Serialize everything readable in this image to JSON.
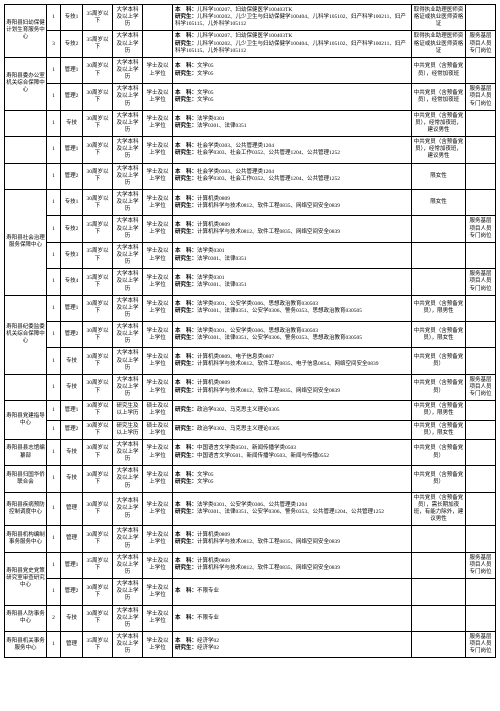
{
  "labels": {
    "benke": "本　科：",
    "yanjiu": "研究生："
  },
  "rows": [
    {
      "org": "寿阳县妇幼保健计划生育服务中心",
      "org_rowspan": 2,
      "count": "1",
      "pos": "专技1",
      "age": "35周岁以下",
      "edu": "大学本科及以上学历",
      "deg": "",
      "bk": "儿科学100207、妇幼保健医学100403TK",
      "yj": "儿科学100202、儿少卫生与妇幼保健学100404、儿科学105102、妇产科学100211、妇产科学105115、儿外科学105112",
      "remark": "取得执业助理医师资格证或执业医师资格证",
      "note": ""
    },
    {
      "count": "3",
      "pos": "专技2",
      "age": "35周岁以下",
      "edu": "大学本科及以上学历",
      "deg": "",
      "bk": "儿科学100207、妇幼保健医学100403TK",
      "yj": "儿科学100202、儿少卫生与妇幼保健学100404、儿科学105102、妇产科学100211、妇产科学105115、儿外科学105112",
      "remark": "取得执业助理医师资格证或执业医师资格证",
      "note": "服务基层项目人员专门岗位"
    },
    {
      "org": "寿阳县委办公室机关综合保障中心",
      "org_rowspan": 2,
      "count": "1",
      "pos": "管理1",
      "age": "30周岁以下",
      "edu": "大学本科及以上学历",
      "deg": "学士及以上学位",
      "bk": "文学05",
      "yj": "文学05",
      "remark": "中共党员（含预备党员），经常加夜班",
      "note": ""
    },
    {
      "count": "1",
      "pos": "管理2",
      "age": "30周岁以下",
      "edu": "大学本科及以上学历",
      "deg": "学士及以上学位",
      "bk": "文学05",
      "yj": "文学05",
      "remark": "中共党员（含预备党员），经常加夜班",
      "note": "服务基层项目人员专门岗位"
    },
    {
      "org": "",
      "org_rowspan": 1,
      "count": "1",
      "pos": "专技",
      "age": "30周岁以下",
      "edu": "大学本科及以上学历",
      "deg": "学士及以上学位",
      "bk": "法学类0301",
      "yj": "法学0301、法律0351",
      "remark": "中共党员（含预备党员），经常加夜班，建议男性",
      "note": ""
    },
    {
      "org": "",
      "org_rowspan": 1,
      "count": "1",
      "pos": "管理1",
      "age": "30周岁以下",
      "edu": "大学本科及以上学历",
      "deg": "学士及以上学位",
      "bk": "社会学类0303、公共管理类1204",
      "yj": "社会学0303、社会工作0352、公共管理1204、公共管理1252",
      "remark": "中共党员（含预备党员），经常加夜班，建议男性",
      "note": ""
    },
    {
      "org": "",
      "org_rowspan": 1,
      "count": "1",
      "pos": "管理2",
      "age": "30周岁以下",
      "edu": "大学本科及以上学历",
      "deg": "学士及以上学位",
      "bk": "社会学类0303、公共管理类1204",
      "yj": "社会学0303、社会工作0352、公共管理1204、公共管理1252",
      "remark": "限女性",
      "note": ""
    },
    {
      "org": "寿阳县社会治理服务保障中心",
      "org_rowspan": 4,
      "count": "1",
      "pos": "专技1",
      "age": "30周岁以下",
      "edu": "大学本科及以上学历",
      "deg": "学士及以上学位",
      "bk": "计算机类0809",
      "yj": "计算机科学与技术0812、软件工程0835、网络空间安全0839",
      "remark": "限女性",
      "note": ""
    },
    {
      "count": "1",
      "pos": "专技2",
      "age": "35周岁以下",
      "edu": "大学本科及以上学历",
      "deg": "学士及以上学位",
      "bk": "计算机类0809",
      "yj": "计算机科学与技术0812、软件工程0835、网络空间安全0839",
      "remark": "",
      "note": "服务基层项目人员专门岗位"
    },
    {
      "count": "1",
      "pos": "专技3",
      "age": "35周岁以下",
      "edu": "大学本科及以上学历",
      "deg": "学士及以上学位",
      "bk": "法学类0301",
      "yj": "法学0301、法律0351",
      "remark": "",
      "note": ""
    },
    {
      "count": "1",
      "pos": "专技4",
      "age": "35周岁以下",
      "edu": "大学本科及以上学历",
      "deg": "学士及以上学位",
      "bk": "法学类0301",
      "yj": "法学0301、法律0351",
      "remark": "",
      "note": "服务基层项目人员专门岗位"
    },
    {
      "org": "寿阳县纪委监委机关综合保障中心",
      "org_rowspan": 3,
      "count": "1",
      "pos": "管理1",
      "age": "30周岁以下",
      "edu": "大学本科及以上学历",
      "deg": "学士及以上学位",
      "bk": "法学类0301、公安学类0306、思想政治教育030503",
      "yj": "法学0301、法律0351、公安学0306、警务0353、思想政治教育030505",
      "remark": "中共党员（含预备党员），限男性",
      "note": ""
    },
    {
      "count": "1",
      "pos": "管理2",
      "age": "30周岁以下",
      "edu": "大学本科及以上学历",
      "deg": "学士及以上学位",
      "bk": "法学类0301、公安学类0306、思想政治教育030503",
      "yj": "法学0301、法律0351、公安学0306、警务0353、思想政治教育030505",
      "remark": "中共党员（含预备党员），限女性",
      "note": ""
    },
    {
      "count": "1",
      "pos": "专技",
      "age": "30周岁以下",
      "edu": "大学本科及以上学历",
      "deg": "学士及以上学位",
      "bk": "计算机类0809、电子信息类0807",
      "yj": "计算机科学与技术0812、软件工程0835、电子信息0854、网络空间安全0839",
      "remark": "中共党员（含预备党员）",
      "note": ""
    },
    {
      "org": "",
      "org_rowspan": 1,
      "count": "1",
      "pos": "专技",
      "age": "30周岁以下",
      "edu": "大学本科及以上学历",
      "deg": "学士及以上学位",
      "bk": "计算机类0809",
      "yj": "计算机科学与技术0812、软件工程0835、网络空间安全0839",
      "remark": "中共党员（含预备党员）",
      "note": "服务基层项目人员专门岗位"
    },
    {
      "org": "寿阳县党建指导中心",
      "org_rowspan": 2,
      "count": "1",
      "pos": "管理1",
      "age": "30周岁以下",
      "edu": "研究生及以上学历",
      "deg": "硕士及以上学位",
      "bk": "",
      "yj": "政治学0302、马克思主义理论0305",
      "remark": "中共党员（含预备党员），限男性",
      "note": ""
    },
    {
      "count": "1",
      "pos": "管理2",
      "age": "30周岁以下",
      "edu": "研究生及以上学历",
      "deg": "硕士及以上学位",
      "bk": "",
      "yj": "政治学0302、马克思主义理论0305",
      "remark": "中共党员（含预备党员），限女性",
      "note": ""
    },
    {
      "org": "寿阳县县志馆编纂部",
      "org_rowspan": 1,
      "count": "1",
      "pos": "专技",
      "age": "30周岁以下",
      "edu": "大学本科及以上学历",
      "deg": "学士及以上学位",
      "bk": "中国语言文学类0501、新闻传播学类0503",
      "yj": "中国语言文学0501、新闻传播学0503、新闻与传播0552",
      "remark": "中共党员（含预备党员）",
      "note": ""
    },
    {
      "org": "寿阳县归国华侨联合会",
      "org_rowspan": 1,
      "count": "1",
      "pos": "专技",
      "age": "30周岁以下",
      "edu": "大学本科及以上学历",
      "deg": "学士及以上学位",
      "bk": "文学05",
      "yj": "文学05",
      "remark": "中共党员（含预备党员）",
      "note": ""
    },
    {
      "org": "寿阳县疾病预防控制调度中心",
      "org_rowspan": 1,
      "count": "1",
      "pos": "管理",
      "age": "30周岁以下",
      "edu": "大学本科及以上学历",
      "deg": "学士及以上学位",
      "bk": "法学类0301、公安学类0306、公共管理类1204",
      "yj": "法学0301、法律0351、公安学0306、警务0353、公共管理1204、公共管理1252",
      "remark": "中共党员（含预备党员），需长期加夜班，有能力除外，建议男性",
      "note": ""
    },
    {
      "org": "寿阳县机构编制事务服务中心",
      "org_rowspan": 1,
      "count": "1",
      "pos": "管理",
      "age": "30周岁以下",
      "edu": "大学本科及以上学历",
      "deg": "学士及以上学位",
      "bk": "计算机类0809",
      "yj": "计算机科学与技术0812、软件工程0835、网络空间安全0839",
      "remark": "",
      "note": ""
    },
    {
      "org": "寿阳县党史党策研究室审查研究中心",
      "org_rowspan": 2,
      "count": "1",
      "pos": "管理1",
      "age": "35周岁以下",
      "edu": "大学本科及以上学历",
      "deg": "学士及以上学位",
      "bk": "计算机类0809",
      "yj": "计算机科学与技术0812、软件工程0835、网络空间安全0839",
      "remark": "",
      "note": "服务基层项目人员专门岗位"
    },
    {
      "count": "1",
      "pos": "管理2",
      "age": "30周岁以下",
      "edu": "大学本科及以上学历",
      "deg": "学士及以上学位",
      "bk": "不限专业",
      "yj": "",
      "remark": "",
      "note": ""
    },
    {
      "org": "寿阳县人防事务中心",
      "org_rowspan": 1,
      "count": "2",
      "pos": "专技",
      "age": "30周岁以下",
      "edu": "大学本科及以上学历",
      "deg": "学士及以上学位",
      "bk": "不限专业",
      "yj": "",
      "remark": "",
      "note": ""
    },
    {
      "org": "寿阳县机关事务服务中心",
      "org_rowspan": 1,
      "count": "1",
      "pos": "管理",
      "age": "35周岁以下",
      "edu": "大学本科及以上学历",
      "deg": "学士及以上学位",
      "bk": "经济学02",
      "yj": "经济学02",
      "remark": "",
      "note": "服务基层项目人员专门岗位"
    }
  ]
}
